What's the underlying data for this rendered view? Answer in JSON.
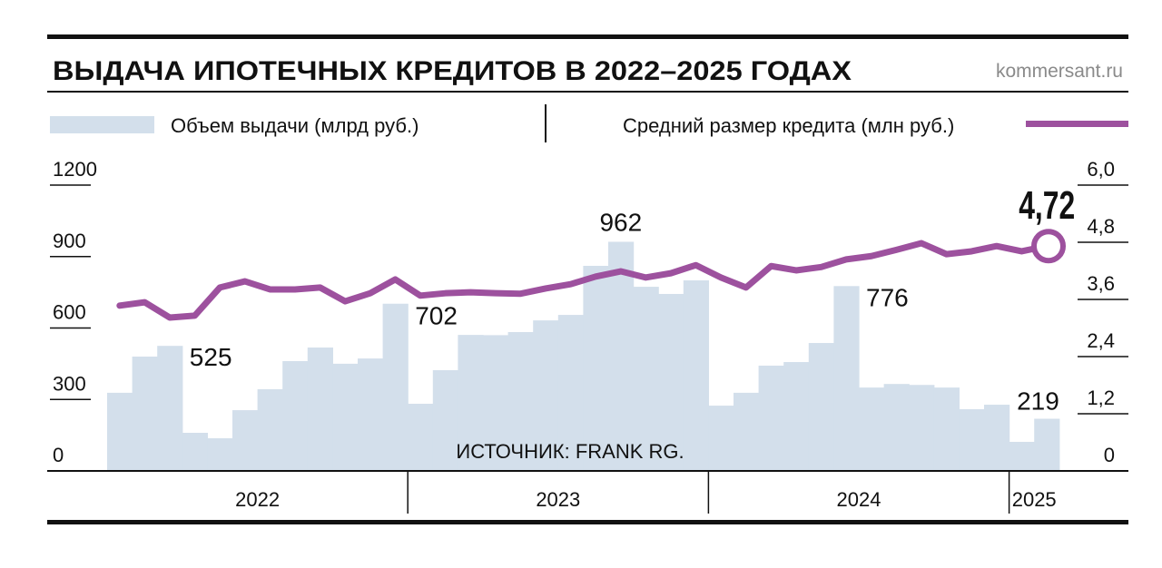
{
  "chart_data": {
    "type": "bar+line",
    "title": "ВЫДАЧА ИПОТЕЧНЫХ КРЕДИТОВ В 2022–2025 ГОДАХ",
    "brand": "kommersant.ru",
    "source": "ИСТОЧНИК: FRANK RG.",
    "colors": {
      "bars": "#d3dfeb",
      "line": "#9d519e",
      "rule": "#111111",
      "brand": "#8a8a8a"
    },
    "legend": [
      {
        "name": "Объем выдачи (млрд руб.)",
        "kind": "bar"
      },
      {
        "name": "Средний размер кредита (млн руб.)",
        "kind": "line"
      }
    ],
    "years": [
      {
        "label": "2022",
        "months": 12
      },
      {
        "label": "2023",
        "months": 12
      },
      {
        "label": "2024",
        "months": 12
      },
      {
        "label": "2025",
        "months": 2
      }
    ],
    "left_axis": {
      "ylim": [
        0,
        1200
      ],
      "ticks": [
        "0",
        "300",
        "600",
        "900",
        "1200"
      ],
      "values": [
        0,
        300,
        600,
        900,
        1200
      ]
    },
    "right_axis": {
      "ylim": [
        0,
        6.0
      ],
      "ticks": [
        "0",
        "1,2",
        "2,4",
        "3,6",
        "4,8",
        "6,0"
      ],
      "values": [
        0,
        1.2,
        2.4,
        3.6,
        4.8,
        6.0
      ]
    },
    "series": [
      {
        "name": "Объем выдачи (млрд руб.)",
        "axis": "left",
        "values": [
          328,
          480,
          525,
          160,
          137,
          255,
          343,
          461,
          518,
          450,
          472,
          702,
          282,
          423,
          571,
          570,
          583,
          632,
          655,
          861,
          962,
          773,
          743,
          800,
          274,
          328,
          442,
          457,
          537,
          776,
          350,
          365,
          361,
          350,
          259,
          278,
          122,
          219
        ]
      },
      {
        "name": "Средний размер кредита (млн руб.)",
        "axis": "right",
        "values": [
          3.47,
          3.54,
          3.22,
          3.26,
          3.85,
          3.98,
          3.81,
          3.81,
          3.85,
          3.56,
          3.73,
          4.02,
          3.68,
          3.73,
          3.75,
          3.73,
          3.72,
          3.83,
          3.92,
          4.08,
          4.19,
          4.06,
          4.15,
          4.32,
          4.06,
          3.85,
          4.3,
          4.21,
          4.28,
          4.44,
          4.51,
          4.64,
          4.78,
          4.55,
          4.61,
          4.72,
          4.61,
          4.72
        ]
      }
    ],
    "annotations": [
      {
        "series": 0,
        "index": 2,
        "text": "525"
      },
      {
        "series": 0,
        "index": 11,
        "text": "702"
      },
      {
        "series": 0,
        "index": 20,
        "text": "962"
      },
      {
        "series": 0,
        "index": 29,
        "text": "776"
      },
      {
        "series": 0,
        "index": 37,
        "text": "219"
      },
      {
        "series": 1,
        "index": 37,
        "text": "4,72"
      }
    ]
  }
}
